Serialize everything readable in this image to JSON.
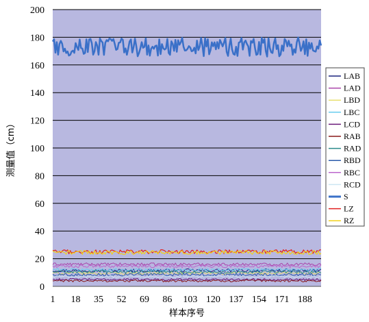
{
  "chart_data": {
    "type": "line",
    "xlabel": "样本序号",
    "ylabel": "测量值（cm）",
    "ylim": [
      0,
      200
    ],
    "yticks": [
      0,
      20,
      40,
      60,
      80,
      100,
      120,
      140,
      160,
      180,
      200
    ],
    "xlim": [
      1,
      200
    ],
    "xticks": [
      1,
      18,
      35,
      52,
      69,
      86,
      103,
      120,
      137,
      154,
      171,
      188
    ],
    "grid": "horizontal",
    "plot_background": "#b8b8e0",
    "legend_position": "right",
    "series": [
      {
        "name": "LAB",
        "color": "#1a237e",
        "mean": 11.5,
        "amp": 1.2,
        "width": 1
      },
      {
        "name": "LAD",
        "color": "#aa44aa",
        "mean": 16.0,
        "amp": 1.0,
        "width": 1
      },
      {
        "name": "LBD",
        "color": "#e8e070",
        "mean": 9.5,
        "amp": 1.0,
        "width": 1
      },
      {
        "name": "LBC",
        "color": "#66ccee",
        "mean": 12.0,
        "amp": 1.0,
        "width": 1
      },
      {
        "name": "LCD",
        "color": "#6a1a7a",
        "mean": 5.0,
        "amp": 0.8,
        "width": 1
      },
      {
        "name": "RAB",
        "color": "#881818",
        "mean": 4.0,
        "amp": 0.8,
        "width": 1
      },
      {
        "name": "RAD",
        "color": "#2a8a8a",
        "mean": 10.5,
        "amp": 1.0,
        "width": 1
      },
      {
        "name": "RBD",
        "color": "#2a5aaa",
        "mean": 8.5,
        "amp": 1.0,
        "width": 1
      },
      {
        "name": "RBC",
        "color": "#bb66cc",
        "mean": 14.5,
        "amp": 1.0,
        "width": 1
      },
      {
        "name": "RCD",
        "color": "#cce6f2",
        "mean": 7.0,
        "amp": 0.8,
        "width": 1
      },
      {
        "name": "S",
        "color": "#3a70c8",
        "mean": 173.0,
        "amp": 7.0,
        "width": 2.5
      },
      {
        "name": "LZ",
        "color": "#e02020",
        "mean": 25.0,
        "amp": 1.5,
        "width": 1.2
      },
      {
        "name": "RZ",
        "color": "#f2d21a",
        "mean": 24.5,
        "amp": 1.5,
        "width": 1.2
      }
    ]
  }
}
